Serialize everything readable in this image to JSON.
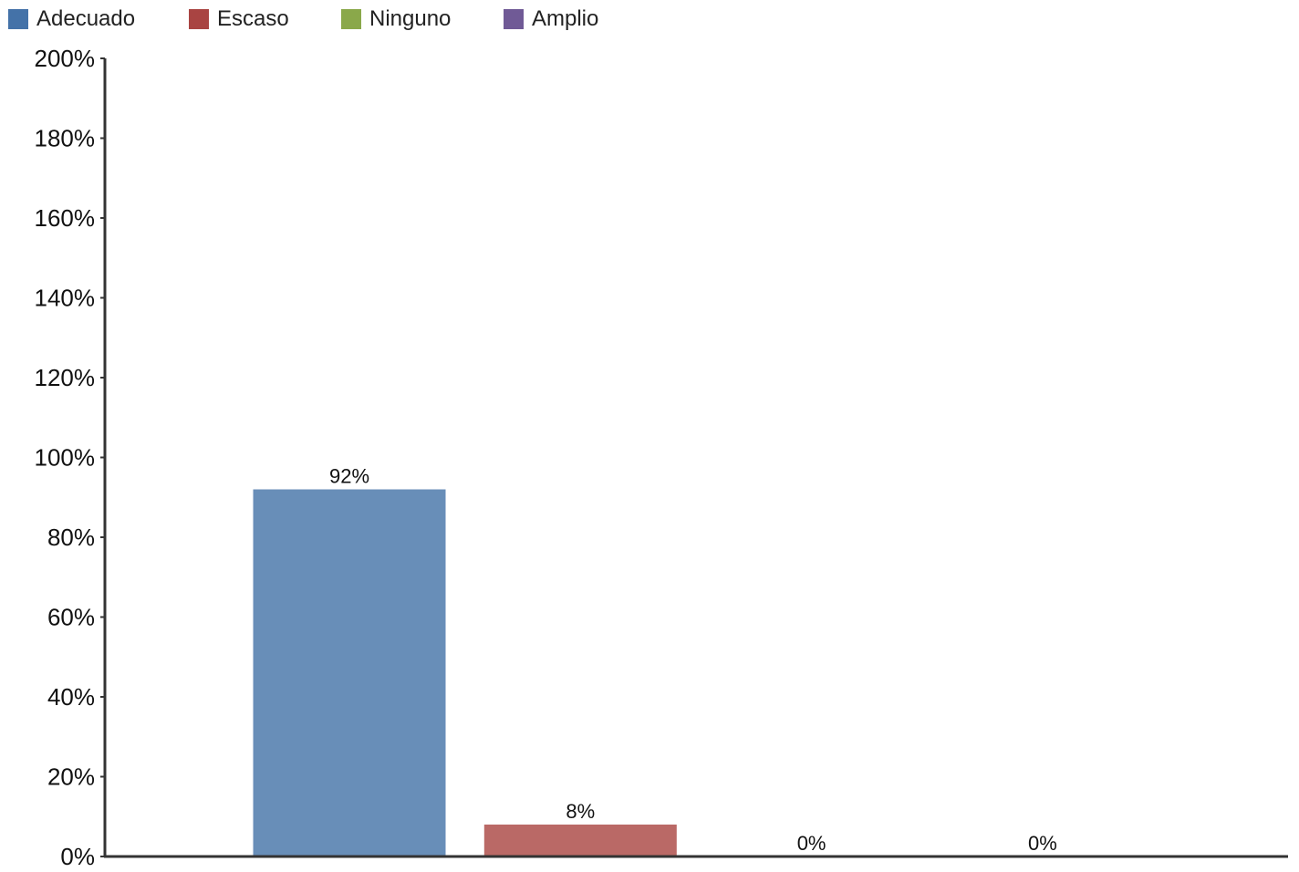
{
  "colors": {
    "legend": [
      "#4472a8",
      "#a94442",
      "#8aa84a",
      "#705a96"
    ],
    "bars": [
      "#688eb8",
      "#ba6966",
      "#a6bd72",
      "#8c7bab"
    ],
    "axis": "#333333"
  },
  "chart_data": {
    "type": "bar",
    "categories": [
      "Adecuado",
      "Escaso",
      "Ninguno",
      "Amplio"
    ],
    "values": [
      92,
      8,
      0,
      0
    ],
    "value_labels": [
      "92%",
      "8%",
      "0%",
      "0%"
    ],
    "ylim": [
      0,
      200
    ],
    "y_ticks": [
      0,
      20,
      40,
      60,
      80,
      100,
      120,
      140,
      160,
      180,
      200
    ],
    "y_tick_labels": [
      "0%",
      "20%",
      "40%",
      "60%",
      "80%",
      "100%",
      "120%",
      "140%",
      "160%",
      "180%",
      "200%"
    ],
    "legend": {
      "placement": "top-left",
      "entries": [
        "Adecuado",
        "Escaso",
        "Ninguno",
        "Amplio"
      ]
    },
    "grid": false,
    "title": "",
    "xlabel": "",
    "ylabel": ""
  }
}
